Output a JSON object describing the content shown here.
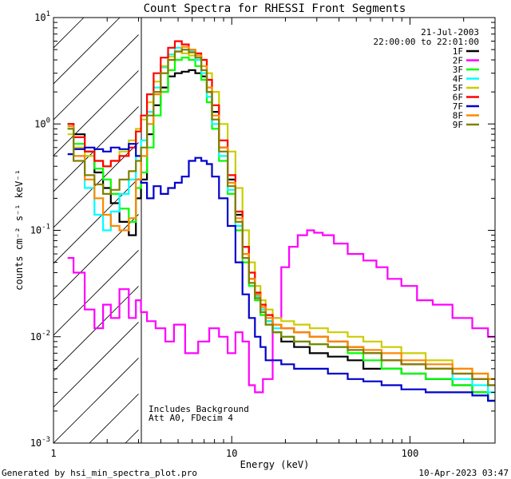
{
  "chart_data": {
    "type": "line",
    "title": "Count Spectra for RHESSI Front Segments",
    "xlabel": "Energy (keV)",
    "ylabel": "counts cm⁻² s⁻¹ keV⁻¹",
    "xscale": "log",
    "yscale": "log",
    "xlim": [
      1,
      300
    ],
    "ylim": [
      0.001,
      10
    ],
    "x_tick_labels": [
      {
        "value": 1,
        "label": "1"
      },
      {
        "value": 10,
        "label": "10"
      },
      {
        "value": 100,
        "label": "100"
      }
    ],
    "y_tick_labels": [
      {
        "value": 0.001,
        "base": "10",
        "exp": "-3"
      },
      {
        "value": 0.01,
        "base": "10",
        "exp": "-2"
      },
      {
        "value": 0.1,
        "base": "10",
        "exp": "-1"
      },
      {
        "value": 1,
        "base": "10",
        "exp": "0"
      },
      {
        "value": 10,
        "base": "10",
        "exp": "1"
      }
    ],
    "date": "21-Jul-2003",
    "time_range": "22:00:00 to 22:01:00",
    "attenuated_region": {
      "x_max": 3,
      "description": "hatched"
    },
    "annotations": [
      "Includes Background",
      "Att A0, FDecim 4"
    ],
    "footer_left": "Generated by hsi_min_spectra_plot.pro",
    "footer_right": "10-Apr-2023 03:47",
    "series": [
      {
        "name": "1F",
        "color": "#000000",
        "x": [
          1.2,
          1.4,
          1.6,
          1.8,
          2.0,
          2.2,
          2.5,
          2.8,
          3.0,
          3.2,
          3.5,
          3.8,
          4.2,
          4.6,
          5.0,
          5.5,
          6.0,
          6.5,
          7.0,
          7.5,
          8.0,
          9.0,
          10,
          11,
          12,
          13,
          14,
          15,
          16,
          18,
          20,
          25,
          30,
          40,
          50,
          60,
          80,
          100,
          150,
          200,
          250,
          300
        ],
        "values": [
          1.0,
          0.8,
          0.55,
          0.35,
          0.25,
          0.18,
          0.12,
          0.09,
          0.2,
          0.3,
          0.8,
          1.5,
          2.2,
          2.8,
          3.0,
          3.1,
          3.2,
          3.0,
          2.8,
          2.0,
          1.3,
          0.6,
          0.3,
          0.14,
          0.07,
          0.035,
          0.025,
          0.018,
          0.014,
          0.011,
          0.009,
          0.008,
          0.007,
          0.0065,
          0.006,
          0.005,
          0.005,
          0.0045,
          0.004,
          0.0035,
          0.003,
          0.0025
        ]
      },
      {
        "name": "2F",
        "color": "#ff00ff",
        "x": [
          1.2,
          1.4,
          1.6,
          1.8,
          2.0,
          2.2,
          2.5,
          2.8,
          3.0,
          3.2,
          3.5,
          4.0,
          4.5,
          5.0,
          6.0,
          7.0,
          8.0,
          9.0,
          10,
          11,
          12,
          13,
          14,
          16,
          18,
          20,
          22,
          25,
          28,
          30,
          35,
          40,
          50,
          60,
          70,
          80,
          100,
          120,
          150,
          200,
          250,
          300
        ],
        "values": [
          0.055,
          0.04,
          0.018,
          0.012,
          0.02,
          0.015,
          0.028,
          0.015,
          0.022,
          0.017,
          0.014,
          0.012,
          0.009,
          0.013,
          0.007,
          0.009,
          0.012,
          0.01,
          0.007,
          0.011,
          0.009,
          0.0035,
          0.003,
          0.004,
          0.015,
          0.045,
          0.07,
          0.09,
          0.1,
          0.095,
          0.09,
          0.075,
          0.06,
          0.052,
          0.045,
          0.035,
          0.03,
          0.022,
          0.02,
          0.015,
          0.012,
          0.01
        ]
      },
      {
        "name": "3F",
        "color": "#00ff00",
        "x": [
          1.2,
          1.4,
          1.6,
          1.8,
          2.0,
          2.2,
          2.5,
          2.8,
          3.0,
          3.2,
          3.5,
          3.8,
          4.2,
          4.6,
          5.0,
          5.5,
          6.0,
          6.5,
          7.0,
          7.5,
          8.0,
          9.0,
          10,
          11,
          12,
          13,
          14,
          15,
          16,
          18,
          20,
          25,
          30,
          40,
          50,
          60,
          80,
          100,
          150,
          200,
          250,
          300
        ],
        "values": [
          0.9,
          0.65,
          0.5,
          0.38,
          0.3,
          0.22,
          0.16,
          0.12,
          0.25,
          0.35,
          0.6,
          1.2,
          2.0,
          3.2,
          4.0,
          4.2,
          4.0,
          3.5,
          2.6,
          1.6,
          0.9,
          0.45,
          0.22,
          0.1,
          0.05,
          0.03,
          0.022,
          0.016,
          0.013,
          0.011,
          0.01,
          0.009,
          0.0085,
          0.008,
          0.007,
          0.006,
          0.005,
          0.0045,
          0.004,
          0.0035,
          0.003,
          0.0025
        ]
      },
      {
        "name": "4F",
        "color": "#00ffff",
        "x": [
          1.2,
          1.4,
          1.6,
          1.8,
          2.0,
          2.2,
          2.5,
          2.8,
          3.0,
          3.2,
          3.5,
          3.8,
          4.2,
          4.6,
          5.0,
          5.5,
          6.0,
          6.5,
          7.0,
          7.5,
          8.0,
          9.0,
          10,
          11,
          12,
          13,
          14,
          15,
          16,
          18,
          20,
          25,
          30,
          40,
          50,
          60,
          80,
          100,
          150,
          200,
          250,
          300
        ],
        "values": [
          0.95,
          0.5,
          0.25,
          0.14,
          0.1,
          0.15,
          0.22,
          0.3,
          0.5,
          0.7,
          1.3,
          2.2,
          3.4,
          4.5,
          5.2,
          5.0,
          4.8,
          4.0,
          3.0,
          1.8,
          1.0,
          0.5,
          0.24,
          0.11,
          0.055,
          0.032,
          0.024,
          0.018,
          0.014,
          0.012,
          0.012,
          0.011,
          0.01,
          0.009,
          0.008,
          0.007,
          0.006,
          0.0055,
          0.005,
          0.004,
          0.0035,
          0.003
        ]
      },
      {
        "name": "5F",
        "color": "#cccc00",
        "x": [
          1.2,
          1.4,
          1.6,
          1.8,
          2.0,
          2.2,
          2.5,
          2.8,
          3.0,
          3.2,
          3.5,
          3.8,
          4.2,
          4.6,
          5.0,
          5.5,
          6.0,
          6.5,
          7.0,
          7.5,
          8.0,
          9.0,
          10,
          11,
          12,
          13,
          14,
          15,
          16,
          18,
          20,
          25,
          30,
          40,
          50,
          60,
          80,
          100,
          150,
          200,
          250,
          300
        ],
        "values": [
          0.8,
          0.6,
          0.5,
          0.45,
          0.4,
          0.45,
          0.55,
          0.7,
          0.9,
          1.1,
          1.6,
          2.5,
          3.5,
          4.3,
          4.8,
          4.6,
          4.4,
          4.2,
          4.0,
          3.0,
          2.0,
          1.0,
          0.55,
          0.25,
          0.1,
          0.05,
          0.03,
          0.022,
          0.018,
          0.015,
          0.014,
          0.013,
          0.012,
          0.011,
          0.01,
          0.009,
          0.008,
          0.007,
          0.006,
          0.005,
          0.0045,
          0.004
        ]
      },
      {
        "name": "6F",
        "color": "#ff0000",
        "x": [
          1.2,
          1.4,
          1.6,
          1.8,
          2.0,
          2.2,
          2.5,
          2.8,
          3.0,
          3.2,
          3.5,
          3.8,
          4.2,
          4.6,
          5.0,
          5.5,
          6.0,
          6.5,
          7.0,
          7.5,
          8.0,
          9.0,
          10,
          11,
          12,
          13,
          14,
          15,
          16,
          18,
          20,
          25,
          30,
          40,
          50,
          60,
          80,
          100,
          150,
          200,
          250,
          300
        ],
        "values": [
          1.0,
          0.75,
          0.55,
          0.45,
          0.4,
          0.45,
          0.5,
          0.6,
          0.85,
          1.2,
          1.9,
          3.0,
          4.2,
          5.2,
          6.0,
          5.6,
          5.0,
          4.6,
          4.0,
          2.6,
          1.5,
          0.7,
          0.33,
          0.15,
          0.07,
          0.04,
          0.026,
          0.02,
          0.016,
          0.013,
          0.012,
          0.011,
          0.01,
          0.009,
          0.008,
          0.007,
          0.006,
          0.0055,
          0.005,
          0.0045,
          0.004,
          0.0035
        ]
      },
      {
        "name": "7F",
        "color": "#0000cc",
        "x": [
          1.2,
          1.4,
          1.6,
          1.8,
          2.0,
          2.2,
          2.5,
          2.8,
          3.0,
          3.2,
          3.5,
          3.8,
          4.2,
          4.6,
          5.0,
          5.5,
          6.0,
          6.5,
          7.0,
          7.5,
          8.0,
          9.0,
          10,
          11,
          12,
          13,
          14,
          15,
          16,
          18,
          20,
          25,
          30,
          40,
          50,
          60,
          80,
          100,
          150,
          200,
          250,
          300
        ],
        "values": [
          0.52,
          0.58,
          0.6,
          0.58,
          0.55,
          0.6,
          0.58,
          0.65,
          0.5,
          0.28,
          0.2,
          0.26,
          0.22,
          0.25,
          0.28,
          0.32,
          0.45,
          0.48,
          0.45,
          0.42,
          0.32,
          0.2,
          0.11,
          0.05,
          0.025,
          0.015,
          0.01,
          0.008,
          0.006,
          0.006,
          0.0055,
          0.005,
          0.005,
          0.0045,
          0.004,
          0.0038,
          0.0035,
          0.0032,
          0.003,
          0.003,
          0.0028,
          0.0025
        ]
      },
      {
        "name": "8F",
        "color": "#ff8800",
        "x": [
          1.2,
          1.4,
          1.6,
          1.8,
          2.0,
          2.2,
          2.5,
          2.8,
          3.0,
          3.2,
          3.5,
          3.8,
          4.2,
          4.6,
          5.0,
          5.5,
          6.0,
          6.5,
          7.0,
          7.5,
          8.0,
          9.0,
          10,
          11,
          12,
          13,
          14,
          15,
          16,
          18,
          20,
          25,
          30,
          40,
          50,
          60,
          80,
          100,
          150,
          200,
          250,
          300
        ],
        "values": [
          0.95,
          0.5,
          0.3,
          0.2,
          0.14,
          0.11,
          0.1,
          0.13,
          0.3,
          0.5,
          1.0,
          1.9,
          3.0,
          4.0,
          4.8,
          5.3,
          5.0,
          4.4,
          3.5,
          2.2,
          1.2,
          0.6,
          0.28,
          0.13,
          0.06,
          0.035,
          0.025,
          0.019,
          0.015,
          0.013,
          0.012,
          0.011,
          0.01,
          0.009,
          0.008,
          0.0075,
          0.007,
          0.006,
          0.0055,
          0.005,
          0.0045,
          0.004
        ]
      },
      {
        "name": "9F",
        "color": "#808000",
        "x": [
          1.2,
          1.4,
          1.6,
          1.8,
          2.0,
          2.2,
          2.5,
          2.8,
          3.0,
          3.2,
          3.5,
          3.8,
          4.2,
          4.6,
          5.0,
          5.5,
          6.0,
          6.5,
          7.0,
          7.5,
          8.0,
          9.0,
          10,
          11,
          12,
          13,
          14,
          15,
          16,
          18,
          20,
          25,
          30,
          40,
          50,
          60,
          80,
          100,
          150,
          200,
          250,
          300
        ],
        "values": [
          0.9,
          0.45,
          0.33,
          0.27,
          0.22,
          0.24,
          0.3,
          0.36,
          0.45,
          0.6,
          1.2,
          2.0,
          3.0,
          4.0,
          4.8,
          5.0,
          4.7,
          4.2,
          3.2,
          2.0,
          1.1,
          0.55,
          0.26,
          0.12,
          0.055,
          0.032,
          0.023,
          0.017,
          0.013,
          0.011,
          0.01,
          0.009,
          0.0085,
          0.008,
          0.0075,
          0.007,
          0.006,
          0.0055,
          0.005,
          0.0045,
          0.004,
          0.0035
        ]
      }
    ]
  }
}
